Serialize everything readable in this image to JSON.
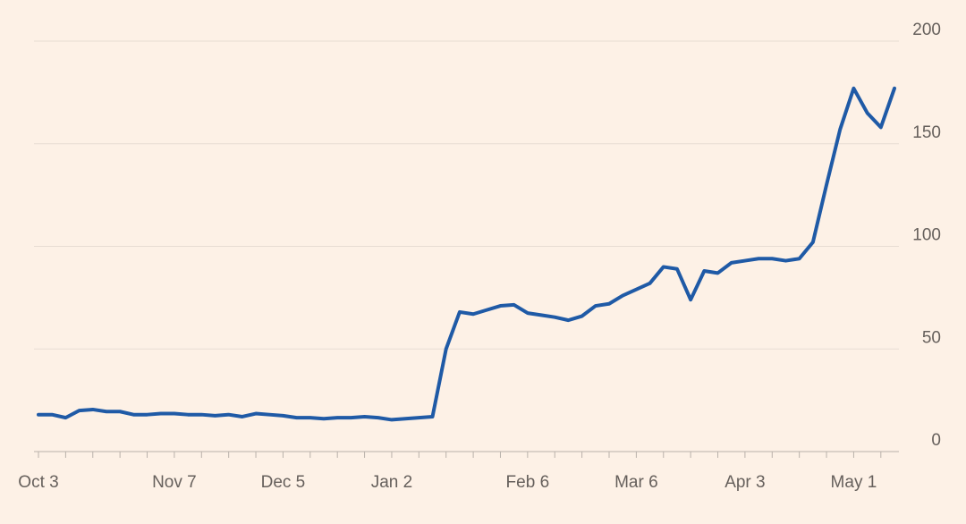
{
  "chart_data": {
    "type": "line",
    "categories": [
      "Oct 3",
      null,
      null,
      null,
      null,
      null,
      null,
      null,
      null,
      null,
      "Nov 7",
      null,
      null,
      null,
      null,
      null,
      null,
      null,
      "Dec 5",
      null,
      null,
      null,
      null,
      null,
      null,
      null,
      "Jan 2",
      null,
      null,
      null,
      null,
      null,
      null,
      null,
      null,
      null,
      "Feb 6",
      null,
      null,
      null,
      null,
      null,
      null,
      null,
      "Mar 6",
      null,
      null,
      null,
      null,
      null,
      null,
      null,
      "Apr 3",
      null,
      null,
      null,
      null,
      null,
      null,
      null,
      "May 1",
      null,
      null,
      null
    ],
    "series": [
      {
        "color": "#1f5aa6",
        "values": [
          18,
          18,
          16.5,
          20,
          20.5,
          19.5,
          19.5,
          18,
          18,
          18.5,
          18.5,
          18,
          18,
          17.5,
          18,
          17,
          18.5,
          18,
          17.5,
          16.5,
          16.5,
          16,
          16.5,
          16.5,
          17,
          16.5,
          15.5,
          16,
          16.5,
          17,
          50,
          68,
          67,
          69,
          71,
          71.5,
          67.5,
          66.5,
          65.5,
          64,
          66,
          71,
          72,
          76,
          79,
          82,
          90,
          89,
          74,
          88,
          87,
          92,
          93,
          94,
          94,
          93,
          94,
          102,
          130,
          157,
          177,
          165,
          158,
          177
        ]
      }
    ],
    "ylim": [
      0,
      200
    ],
    "yticks": [
      0,
      50,
      100,
      150,
      200
    ],
    "grid": true
  }
}
